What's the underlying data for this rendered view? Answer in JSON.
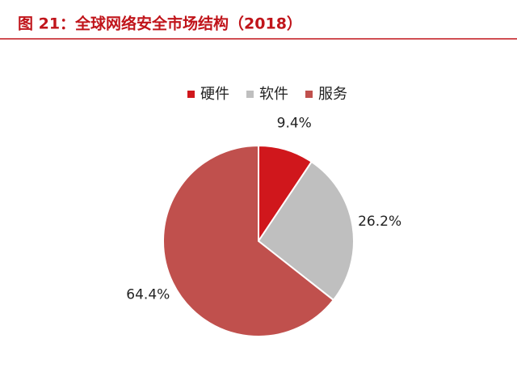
{
  "chart_data": {
    "type": "pie",
    "title": "图 21：全球网络安全市场结构（2018）",
    "categories": [
      "硬件",
      "软件",
      "服务"
    ],
    "values": [
      9.4,
      26.2,
      64.4
    ],
    "value_labels": [
      "9.4%",
      "26.2%",
      "64.4%"
    ],
    "colors": [
      "#d0171c",
      "#bfbfbf",
      "#c0504d"
    ],
    "legend": "top"
  }
}
